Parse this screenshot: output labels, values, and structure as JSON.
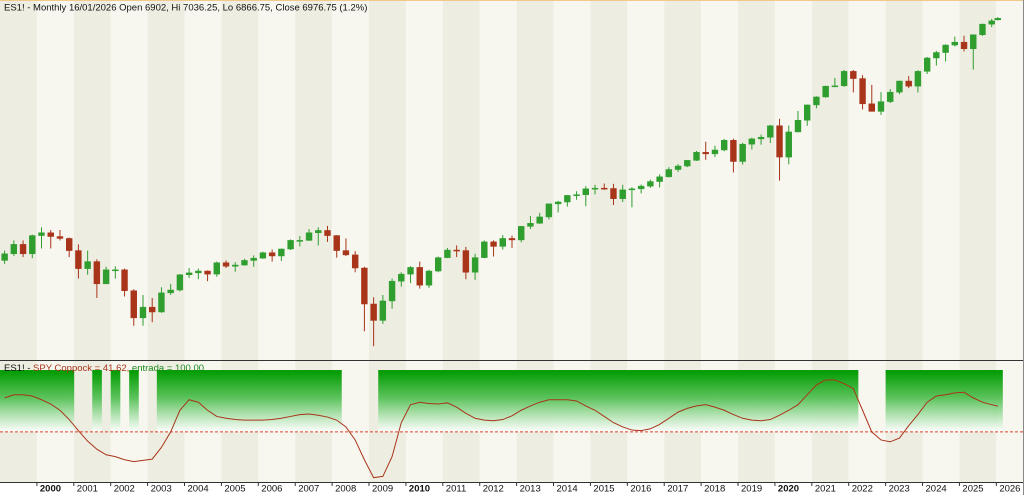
{
  "chart_data": [
    {
      "type": "candlestick",
      "title": "ES1! - Monthly 16/01/2026 Open 6902, Hi 7036.25, Lo 6866.75, Close 6976.75 (1.2%)",
      "x": [
        1999.125,
        1999.375,
        1999.625,
        1999.875,
        2000.125,
        2000.375,
        2000.625,
        2000.875,
        2001.125,
        2001.375,
        2001.625,
        2001.875,
        2002.125,
        2002.375,
        2002.625,
        2002.875,
        2003.125,
        2003.375,
        2003.625,
        2003.875,
        2004.125,
        2004.375,
        2004.625,
        2004.875,
        2005.125,
        2005.375,
        2005.625,
        2005.875,
        2006.125,
        2006.375,
        2006.625,
        2006.875,
        2007.125,
        2007.375,
        2007.625,
        2007.875,
        2008.125,
        2008.375,
        2008.625,
        2008.875,
        2009.125,
        2009.375,
        2009.625,
        2009.875,
        2010.125,
        2010.375,
        2010.625,
        2010.875,
        2011.125,
        2011.375,
        2011.625,
        2011.875,
        2012.125,
        2012.375,
        2012.625,
        2012.875,
        2013.125,
        2013.375,
        2013.625,
        2013.875,
        2014.125,
        2014.375,
        2014.625,
        2014.875,
        2015.125,
        2015.375,
        2015.625,
        2015.875,
        2016.125,
        2016.375,
        2016.625,
        2016.875,
        2017.125,
        2017.375,
        2017.625,
        2017.875,
        2018.125,
        2018.375,
        2018.625,
        2018.875,
        2019.125,
        2019.375,
        2019.625,
        2019.875,
        2020.125,
        2020.375,
        2020.625,
        2020.875,
        2021.125,
        2021.375,
        2021.625,
        2021.875,
        2022.125,
        2022.375,
        2022.625,
        2022.875,
        2023.125,
        2023.375,
        2023.625,
        2023.875,
        2024.125,
        2024.375,
        2024.625,
        2024.875,
        2025.125,
        2025.375,
        2025.625,
        2025.875,
        2026.04
      ],
      "open": [
        1230,
        1290,
        1380,
        1290,
        1470,
        1500,
        1460,
        1440,
        1320,
        1160,
        1220,
        1040,
        1150,
        1150,
        990,
        815,
        880,
        850,
        975,
        995,
        1110,
        1125,
        1140,
        1115,
        1210,
        1180,
        1190,
        1230,
        1250,
        1300,
        1270,
        1335,
        1420,
        1420,
        1500,
        1525,
        1470,
        1320,
        1280,
        1165,
        900,
        800,
        920,
        1060,
        1115,
        1170,
        1030,
        1140,
        1255,
        1325,
        1320,
        1130,
        1255,
        1405,
        1360,
        1440,
        1425,
        1570,
        1605,
        1680,
        1845,
        1870,
        1960,
        1970,
        2055,
        2065,
        2060,
        1915,
        2040,
        2055,
        2095,
        2165,
        2240,
        2360,
        2420,
        2520,
        2670,
        2640,
        2715,
        2910,
        2500,
        2830,
        2940,
        2975,
        3230,
        2580,
        3090,
        3360,
        3750,
        3970,
        4290,
        4300,
        4770,
        4530,
        3780,
        3580,
        3840,
        4110,
        4450,
        4290,
        4770,
        5250,
        5460,
        5760,
        5880,
        5610,
        6200,
        6690,
        6902
      ],
      "high": [
        1320,
        1420,
        1420,
        1480,
        1560,
        1530,
        1530,
        1450,
        1380,
        1320,
        1240,
        1175,
        1180,
        1160,
        1000,
        960,
        940,
        1015,
        1040,
        1115,
        1165,
        1160,
        1145,
        1220,
        1230,
        1215,
        1245,
        1275,
        1310,
        1330,
        1340,
        1430,
        1465,
        1540,
        1560,
        1575,
        1475,
        1440,
        1315,
        1175,
        945,
        960,
        1080,
        1130,
        1180,
        1220,
        1150,
        1265,
        1345,
        1370,
        1355,
        1290,
        1420,
        1420,
        1475,
        1470,
        1575,
        1690,
        1730,
        1850,
        1885,
        1965,
        2020,
        2095,
        2115,
        2135,
        2130,
        2115,
        2080,
        2120,
        2195,
        2280,
        2400,
        2455,
        2525,
        2695,
        2880,
        2800,
        2940,
        2945,
        2860,
        2965,
        3030,
        3250,
        3395,
        3235,
        3590,
        3760,
        3990,
        4300,
        4550,
        4820,
        4820,
        4640,
        4330,
        4110,
        4200,
        4460,
        4610,
        4810,
        5290,
        5525,
        5790,
        6120,
        6160,
        6220,
        6720,
        6950,
        7036.25
      ],
      "low": [
        1200,
        1270,
        1260,
        1250,
        1340,
        1340,
        1420,
        1260,
        1080,
        1110,
        940,
        1040,
        1080,
        950,
        770,
        770,
        790,
        845,
        960,
        985,
        1085,
        1075,
        1060,
        1095,
        1165,
        1135,
        1185,
        1175,
        1245,
        1220,
        1225,
        1325,
        1360,
        1415,
        1370,
        1405,
        1255,
        1270,
        1130,
        740,
        665,
        780,
        870,
        1020,
        1045,
        1005,
        1010,
        1130,
        1250,
        1260,
        1075,
        1070,
        1250,
        1265,
        1330,
        1345,
        1400,
        1540,
        1600,
        1650,
        1735,
        1810,
        1900,
        1815,
        1975,
        2040,
        1830,
        1870,
        1800,
        1990,
        2070,
        2075,
        2230,
        2320,
        2400,
        2510,
        2530,
        2580,
        2690,
        2310,
        2445,
        2725,
        2820,
        2855,
        2180,
        2450,
        3080,
        3230,
        3660,
        3950,
        4260,
        4270,
        4100,
        3630,
        3580,
        3490,
        3800,
        4050,
        4230,
        4100,
        4680,
        4970,
        5120,
        5700,
        5500,
        4830,
        6150,
        6550,
        6866.75
      ],
      "close": [
        1290,
        1380,
        1290,
        1470,
        1500,
        1460,
        1440,
        1320,
        1160,
        1220,
        1040,
        1150,
        1150,
        990,
        815,
        880,
        850,
        975,
        995,
        1110,
        1125,
        1140,
        1115,
        1210,
        1180,
        1190,
        1230,
        1250,
        1300,
        1270,
        1335,
        1420,
        1420,
        1500,
        1525,
        1470,
        1320,
        1280,
        1165,
        900,
        800,
        920,
        1060,
        1115,
        1170,
        1030,
        1140,
        1255,
        1325,
        1320,
        1130,
        1255,
        1405,
        1360,
        1440,
        1425,
        1570,
        1605,
        1680,
        1845,
        1870,
        1960,
        1970,
        2055,
        2065,
        2060,
        1915,
        2040,
        2055,
        2095,
        2165,
        2240,
        2360,
        2420,
        2520,
        2670,
        2640,
        2715,
        2910,
        2500,
        2830,
        2940,
        2975,
        3230,
        2580,
        3090,
        3360,
        3750,
        3970,
        4290,
        4300,
        4770,
        4530,
        3780,
        3580,
        3840,
        4110,
        4450,
        4290,
        4770,
        5250,
        5460,
        5760,
        5880,
        5610,
        6200,
        6690,
        6850,
        6976.75
      ],
      "up_color": "#2f9e2f",
      "down_color": "#a8341a",
      "ylim": [
        620,
        7300
      ],
      "log_y": true,
      "xlim": [
        1999.0,
        2026.75
      ],
      "xticks": [
        2000,
        2001,
        2002,
        2003,
        2004,
        2005,
        2006,
        2007,
        2008,
        2009,
        2010,
        2011,
        2012,
        2013,
        2014,
        2015,
        2016,
        2017,
        2018,
        2019,
        2020,
        2021,
        2022,
        2023,
        2024,
        2025,
        2026
      ],
      "bold_ticks": [
        2000,
        2010,
        2020
      ]
    },
    {
      "type": "line",
      "title": "ES1! -",
      "series": [
        {
          "name": "SPY Coppock",
          "label": "= 41.62,",
          "color": "#a8341a",
          "values": [
            55,
            60,
            60,
            58,
            52,
            45,
            35,
            20,
            2,
            -15,
            -28,
            -37,
            -40,
            -45,
            -48,
            -46,
            -44,
            -25,
            0,
            35,
            52,
            48,
            35,
            25,
            22,
            20,
            19,
            19,
            19,
            20,
            22,
            25,
            28,
            29,
            27,
            24,
            19,
            8,
            -13,
            -45,
            -74,
            -72,
            -40,
            15,
            44,
            48,
            46,
            45,
            47,
            40,
            30,
            22,
            19,
            18,
            20,
            26,
            35,
            42,
            48,
            52,
            52,
            52,
            50,
            42,
            35,
            25,
            15,
            8,
            3,
            2,
            5,
            12,
            22,
            32,
            38,
            42,
            44,
            40,
            35,
            28,
            22,
            19,
            18,
            20,
            27,
            35,
            44,
            60,
            76,
            84,
            84,
            78,
            70,
            35,
            0,
            -13,
            -16,
            -10,
            10,
            28,
            48,
            58,
            60,
            63,
            64,
            55,
            48,
            44,
            41.62
          ]
        },
        {
          "name": "entrada",
          "label": "= 100.00",
          "color": "#00a000",
          "values": [
            100,
            100,
            100,
            100,
            100,
            100,
            100,
            100,
            0,
            0,
            100,
            0,
            100,
            0,
            100,
            0,
            0,
            100,
            100,
            100,
            100,
            100,
            100,
            100,
            100,
            100,
            100,
            100,
            100,
            100,
            100,
            100,
            100,
            100,
            100,
            100,
            100,
            0,
            0,
            0,
            0,
            100,
            100,
            100,
            100,
            100,
            100,
            100,
            100,
            100,
            100,
            100,
            100,
            100,
            100,
            100,
            100,
            100,
            100,
            100,
            100,
            100,
            100,
            100,
            100,
            100,
            100,
            100,
            100,
            100,
            100,
            100,
            100,
            100,
            100,
            100,
            100,
            100,
            100,
            100,
            100,
            100,
            100,
            100,
            100,
            100,
            100,
            100,
            100,
            100,
            100,
            100,
            100,
            0,
            0,
            0,
            100,
            100,
            100,
            100,
            100,
            100,
            100,
            100,
            100,
            100,
            100,
            100,
            100
          ]
        }
      ],
      "hlines": [
        0
      ],
      "hline_color": "#d9442a",
      "ylim": [
        -81,
        113
      ]
    }
  ]
}
